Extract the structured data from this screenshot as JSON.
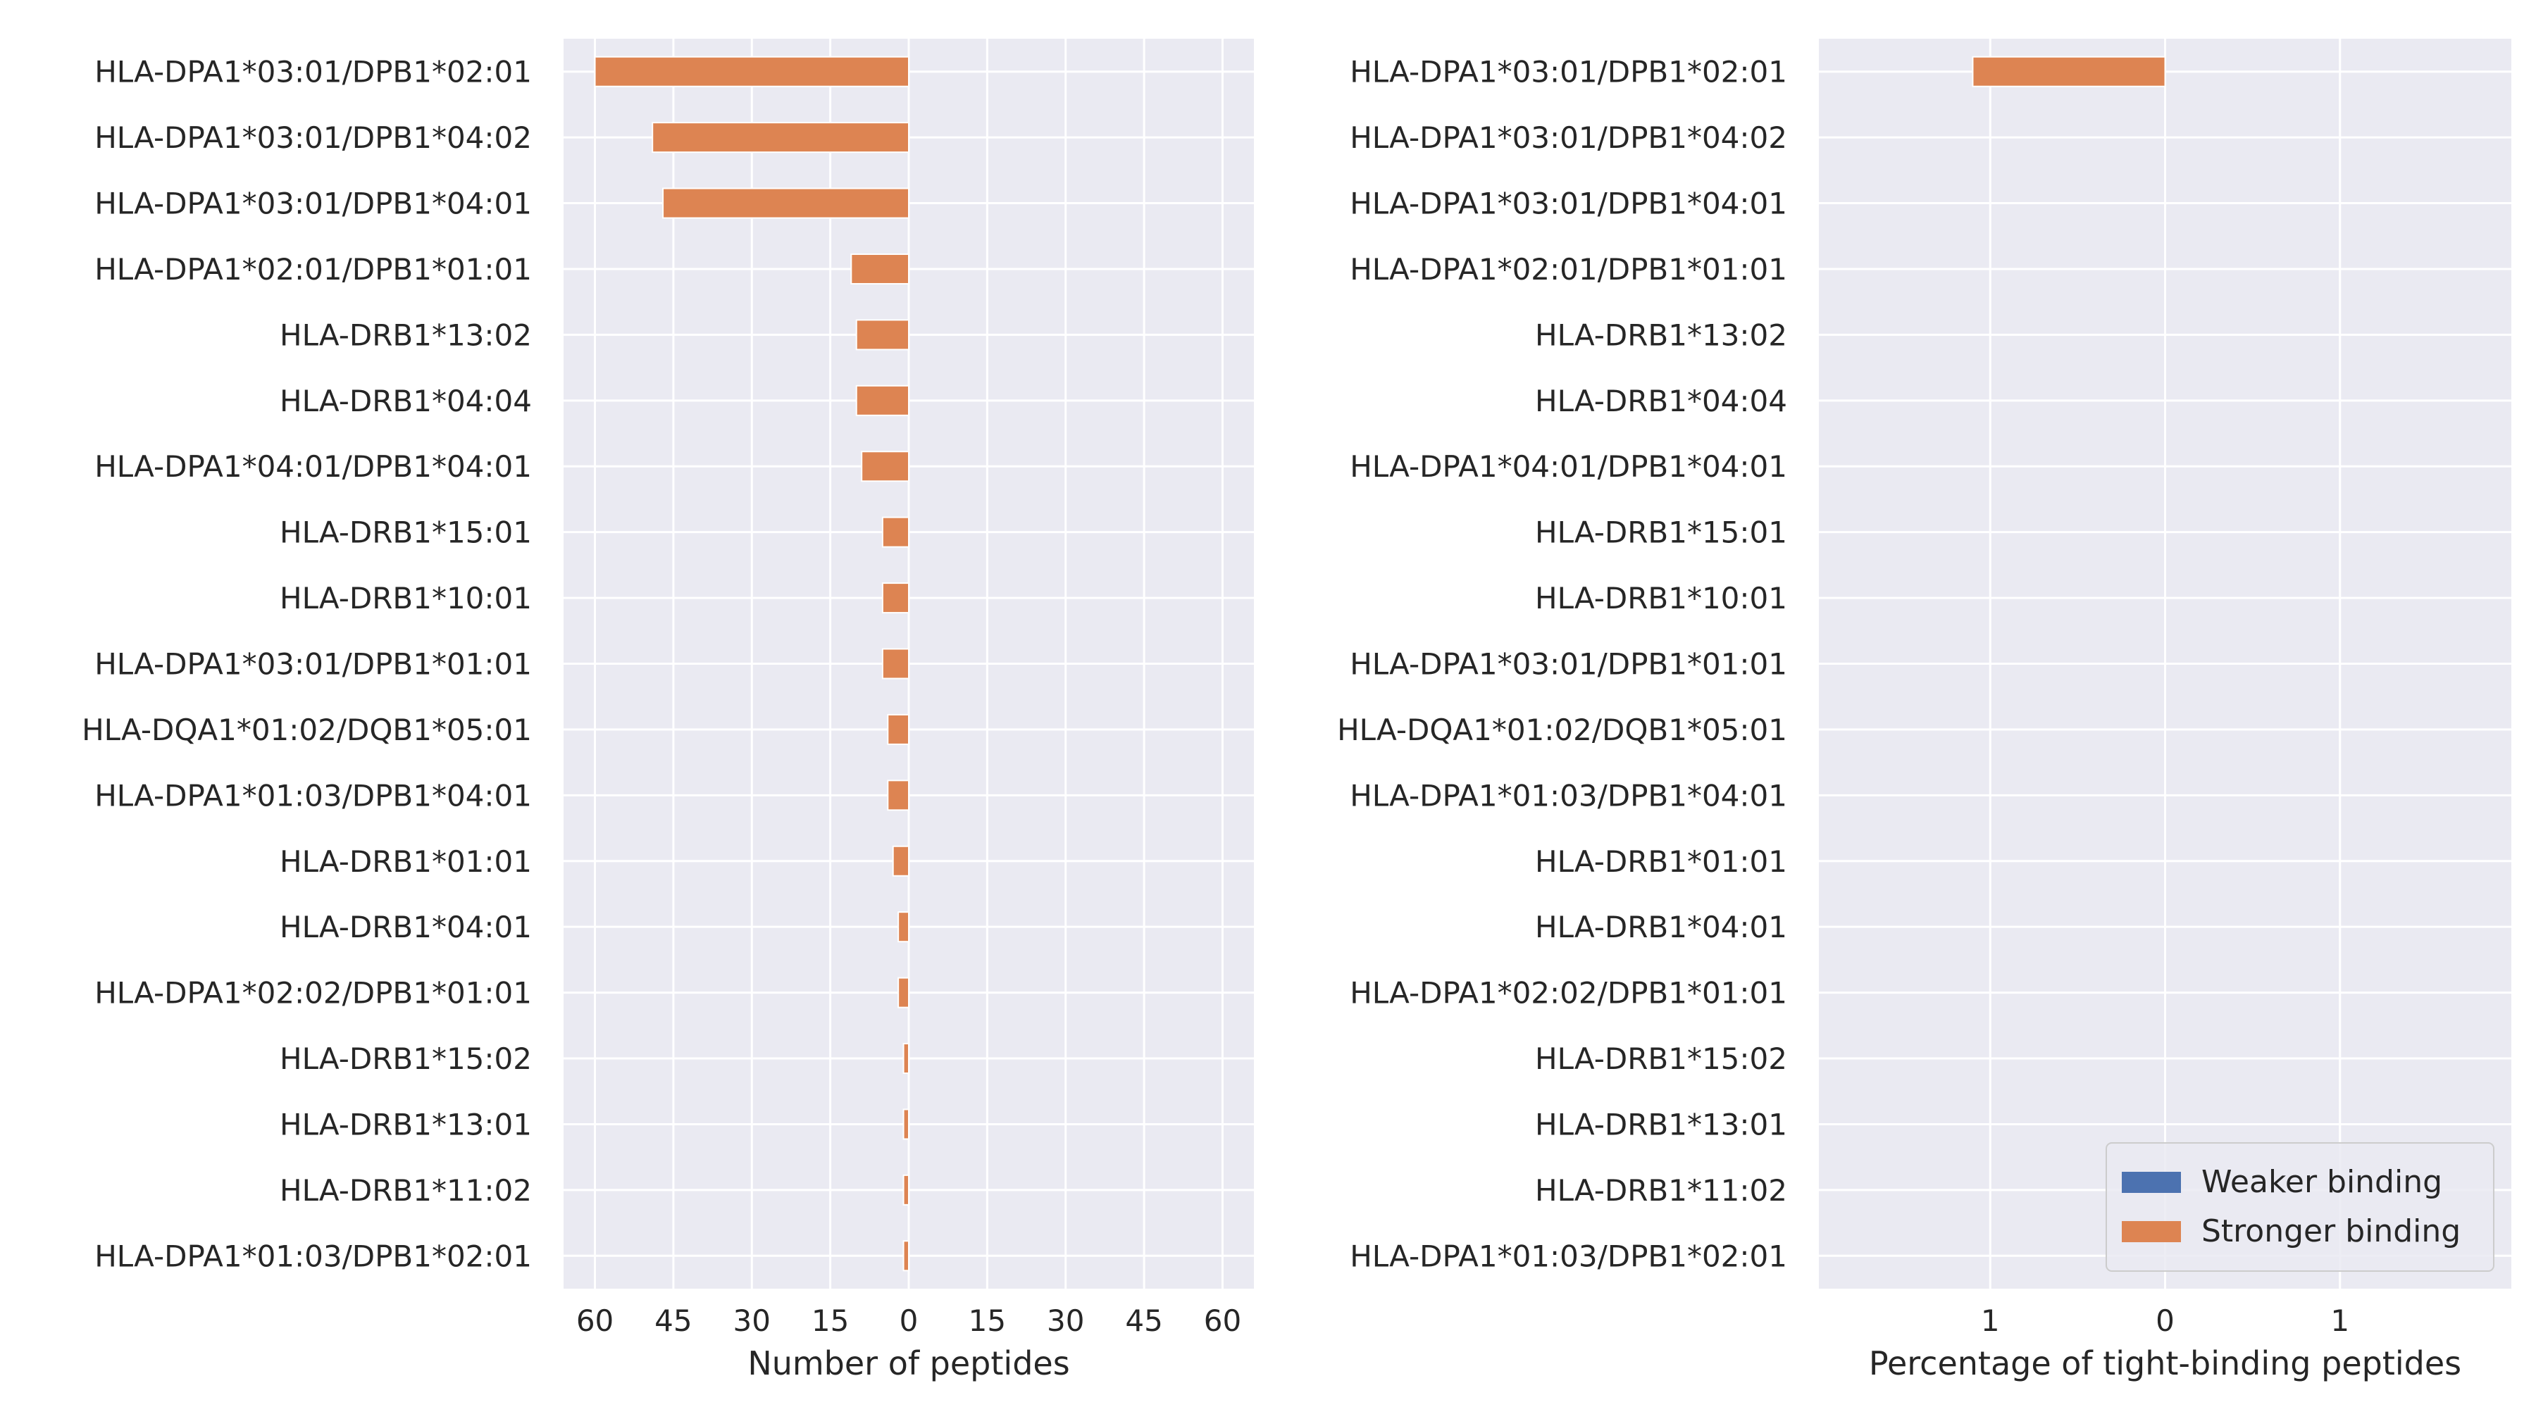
{
  "chart_data": [
    {
      "type": "bar",
      "orientation": "horizontal",
      "mirrored": true,
      "categories": [
        "HLA-DPA1*03:01/DPB1*02:01",
        "HLA-DPA1*03:01/DPB1*04:02",
        "HLA-DPA1*03:01/DPB1*04:01",
        "HLA-DPA1*02:01/DPB1*01:01",
        "HLA-DRB1*13:02",
        "HLA-DRB1*04:04",
        "HLA-DPA1*04:01/DPB1*04:01",
        "HLA-DRB1*15:01",
        "HLA-DRB1*10:01",
        "HLA-DPA1*03:01/DPB1*01:01",
        "HLA-DQA1*01:02/DQB1*05:01",
        "HLA-DPA1*01:03/DPB1*04:01",
        "HLA-DRB1*01:01",
        "HLA-DRB1*04:01",
        "HLA-DPA1*02:02/DPB1*01:01",
        "HLA-DRB1*15:02",
        "HLA-DRB1*13:01",
        "HLA-DRB1*11:02",
        "HLA-DPA1*01:03/DPB1*02:01"
      ],
      "series": [
        {
          "name": "Stronger binding",
          "side": "left",
          "color": "#dd8452",
          "values": [
            60,
            49,
            47,
            11,
            10,
            10,
            9,
            5,
            5,
            5,
            4,
            4,
            3,
            2,
            2,
            1,
            1,
            1,
            1
          ]
        },
        {
          "name": "Weaker binding",
          "side": "right",
          "color": "#4c72b0",
          "values": [
            0,
            0,
            0,
            0,
            0,
            0,
            0,
            0,
            0,
            0,
            0,
            0,
            0,
            0,
            0,
            0,
            0,
            0,
            0
          ]
        }
      ],
      "xticks": [
        -60,
        -45,
        -30,
        -15,
        0,
        15,
        30,
        45,
        60
      ],
      "xtick_labels": [
        "60",
        "45",
        "30",
        "15",
        "0",
        "15",
        "30",
        "45",
        "60"
      ],
      "xlim": [
        -66,
        66
      ],
      "xlabel": "Number of peptides",
      "grid": true,
      "background": "#eaeaf2"
    },
    {
      "type": "bar",
      "orientation": "horizontal",
      "mirrored": true,
      "categories": [
        "HLA-DPA1*03:01/DPB1*02:01",
        "HLA-DPA1*03:01/DPB1*04:02",
        "HLA-DPA1*03:01/DPB1*04:01",
        "HLA-DPA1*02:01/DPB1*01:01",
        "HLA-DRB1*13:02",
        "HLA-DRB1*04:04",
        "HLA-DPA1*04:01/DPB1*04:01",
        "HLA-DRB1*15:01",
        "HLA-DRB1*10:01",
        "HLA-DPA1*03:01/DPB1*01:01",
        "HLA-DQA1*01:02/DQB1*05:01",
        "HLA-DPA1*01:03/DPB1*04:01",
        "HLA-DRB1*01:01",
        "HLA-DRB1*04:01",
        "HLA-DPA1*02:02/DPB1*01:01",
        "HLA-DRB1*15:02",
        "HLA-DRB1*13:01",
        "HLA-DRB1*11:02",
        "HLA-DPA1*01:03/DPB1*02:01"
      ],
      "series": [
        {
          "name": "Stronger binding",
          "side": "left",
          "color": "#dd8452",
          "values": [
            1.1,
            0,
            0,
            0,
            0,
            0,
            0,
            0,
            0,
            0,
            0,
            0,
            0,
            0,
            0,
            0,
            0,
            0,
            0
          ]
        },
        {
          "name": "Weaker binding",
          "side": "right",
          "color": "#4c72b0",
          "values": [
            0,
            0,
            0,
            0,
            0,
            0,
            0,
            0,
            0,
            0,
            0,
            0,
            0,
            0,
            0,
            0,
            0,
            0,
            0
          ]
        }
      ],
      "xticks": [
        -1,
        0,
        1
      ],
      "xtick_labels": [
        "1",
        "0",
        "1"
      ],
      "xlim": [
        -1.98,
        1.98
      ],
      "xlabel": "Percentage of tight-binding peptides",
      "grid": true,
      "background": "#eaeaf2",
      "legend": {
        "placement": "lower-right",
        "entries": [
          {
            "label": "Weaker binding",
            "color": "#4c72b0"
          },
          {
            "label": "Stronger binding",
            "color": "#dd8452"
          }
        ]
      }
    }
  ]
}
